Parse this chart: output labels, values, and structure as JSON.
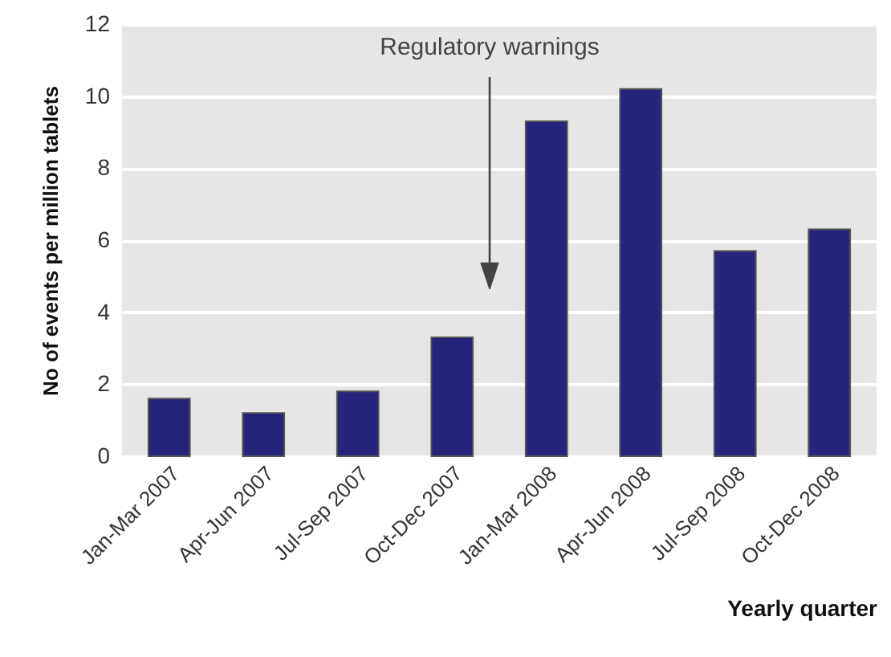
{
  "chart_data": {
    "type": "bar",
    "xlabel": "Yearly quarter",
    "ylabel": "No of events per million tablets",
    "categories": [
      "Jan-Mar 2007",
      "Apr-Jun 2007",
      "Jul-Sep 2007",
      "Oct-Dec 2007",
      "Jan-Mar 2008",
      "Apr-Jun 2008",
      "Jul-Sep 2008",
      "Oct-Dec 2008"
    ],
    "values": [
      1.6,
      1.2,
      1.8,
      3.3,
      9.3,
      10.2,
      5.7,
      6.3
    ],
    "color": "#25237a",
    "ylim": [
      0,
      12
    ],
    "yticks": [
      0,
      2,
      4,
      6,
      8,
      10,
      12
    ],
    "grid": "y",
    "annotations": [
      "Regulatory warnings"
    ]
  }
}
